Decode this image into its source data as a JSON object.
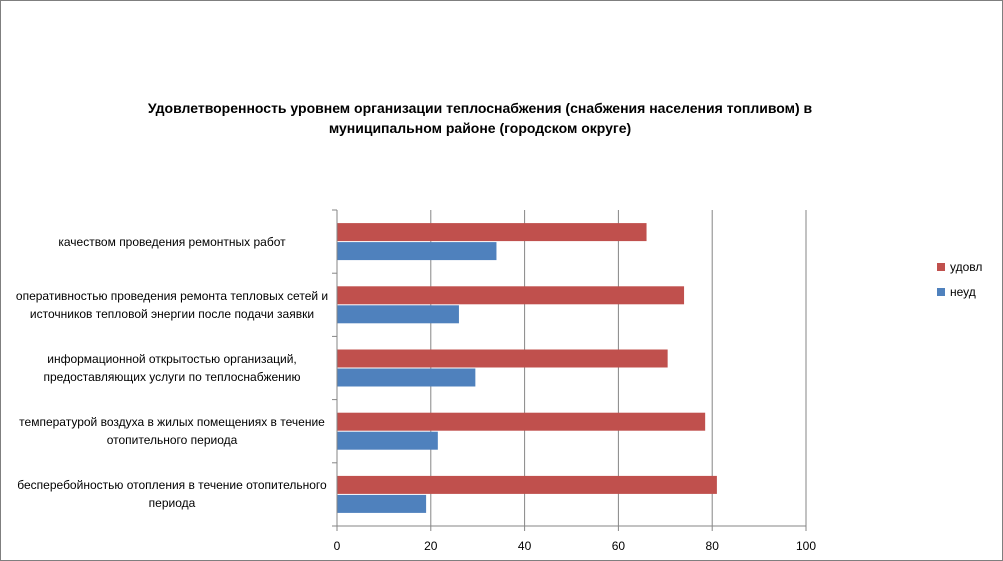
{
  "chart_data": {
    "type": "bar",
    "orientation": "horizontal",
    "title": "Удовлетворенность уровнем организации теплоснабжения (снабжения населения топливом) в муниципальном районе (городском округе)",
    "categories": [
      "качеством проведения ремонтных работ",
      "оперативностью проведения ремонта тепловых сетей и источников тепловой энергии после подачи заявки",
      "информационной открытостью организаций, предоставляющих услуги по теплоснабжению",
      "температурой воздуха в жилых помещениях в течение отопительного периода",
      "бесперебойностью отопления в течение отопительного периода"
    ],
    "series": [
      {
        "name": "удовл",
        "color": "#c0504d",
        "values": [
          66,
          74,
          70.5,
          78.5,
          81
        ]
      },
      {
        "name": "неуд",
        "color": "#4f81bd",
        "values": [
          34,
          26,
          29.5,
          21.5,
          19
        ]
      }
    ],
    "xlim": [
      0,
      100
    ],
    "xticks": [
      "0",
      "20",
      "40",
      "60",
      "80",
      "100"
    ],
    "grid": "vertical",
    "legend_position": "right"
  }
}
